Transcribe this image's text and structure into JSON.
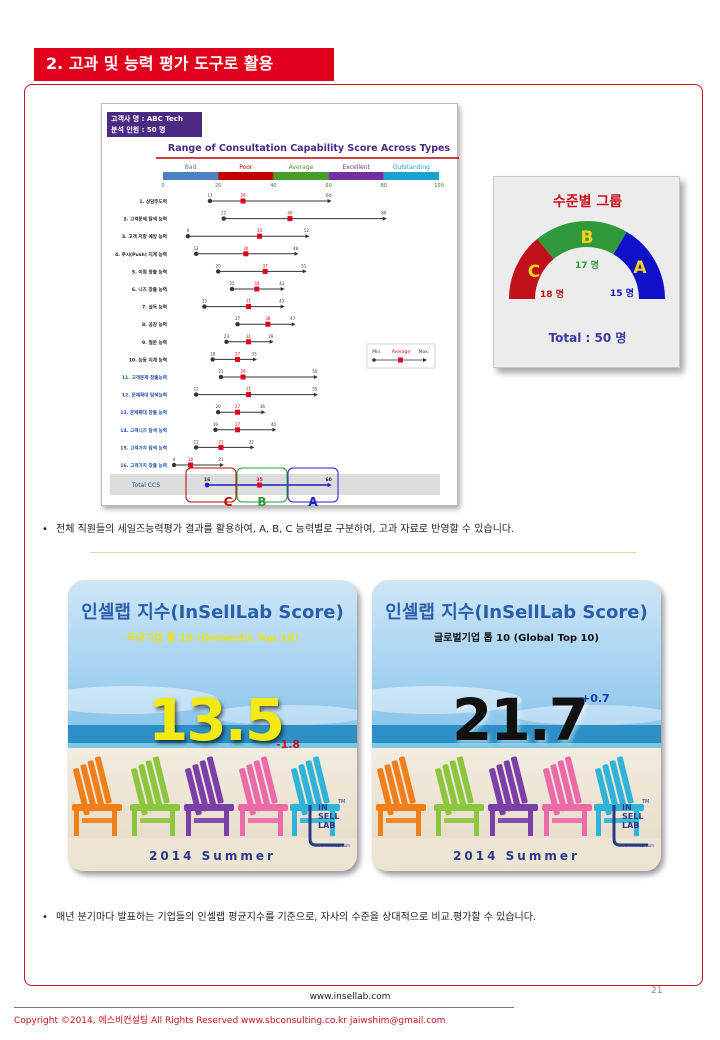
{
  "section_title": "2. 고과 및 능력 평가 도구로 활용",
  "info_box": {
    "client": "고객사 명 :   ABC Tech",
    "analyzed": "분석 인원 :   50 명"
  },
  "chart_data": {
    "type": "range",
    "title": "Range of Consultation Capability Score Across Types",
    "bands": [
      {
        "name": "Bad",
        "from": 0,
        "to": 20,
        "color": "#4f81bd"
      },
      {
        "name": "Poor",
        "from": 20,
        "to": 40,
        "color": "#c00000"
      },
      {
        "name": "Average",
        "from": 40,
        "to": 60,
        "color": "#4a9a2c"
      },
      {
        "name": "Excellent",
        "from": 60,
        "to": 80,
        "color": "#7030a0"
      },
      {
        "name": "Outstanding",
        "from": 80,
        "to": 100,
        "color": "#1ba3cf"
      }
    ],
    "ticks": [
      0,
      20,
      40,
      60,
      80,
      100
    ],
    "xlim": [
      0,
      100
    ],
    "rows": [
      {
        "label": "1. 상담주도력",
        "min": 17,
        "avg": 29,
        "max": 60,
        "color": "#222222"
      },
      {
        "label": "2. 고객문제 탐색 능력",
        "min": 22,
        "avg": 46,
        "max": 80,
        "color": "#222222"
      },
      {
        "label": "3. 고객 저항 예방 능력",
        "min": 9,
        "avg": 35,
        "max": 52,
        "color": "#222222"
      },
      {
        "label": "4. 푸시(Push) 지계 능력",
        "min": 12,
        "avg": 30,
        "max": 48,
        "color": "#222222"
      },
      {
        "label": "5. 이점 창출 능력",
        "min": 20,
        "avg": 37,
        "max": 51,
        "color": "#222222"
      },
      {
        "label": "6. 니즈 창출 능력",
        "min": 25,
        "avg": 34,
        "max": 43,
        "color": "#222222"
      },
      {
        "label": "7. 설득 능력",
        "min": 15,
        "avg": 31,
        "max": 43,
        "color": "#222222"
      },
      {
        "label": "8. 공감 능력",
        "min": 27,
        "avg": 38,
        "max": 47,
        "color": "#222222"
      },
      {
        "label": "9. 질문 능력",
        "min": 23,
        "avg": 31,
        "max": 39,
        "color": "#222222"
      },
      {
        "label": "10. 능동 지계 능력",
        "min": 18,
        "avg": 27,
        "max": 33,
        "color": "#222222"
      },
      {
        "label": "11. 고객문제 창출능력",
        "min": 21,
        "avg": 29,
        "max": 55,
        "color": "#1f4ea3"
      },
      {
        "label": "12. 문제확대 탐색능력",
        "min": 12,
        "avg": 31,
        "max": 55,
        "color": "#1f4ea3"
      },
      {
        "label": "13. 문제확대 창출 능력",
        "min": 20,
        "avg": 27,
        "max": 36,
        "color": "#1f4ea3"
      },
      {
        "label": "14. 고객니즈 탐색 능력",
        "min": 19,
        "avg": 27,
        "max": 40,
        "color": "#1f4ea3"
      },
      {
        "label": "15. 고객가치 탐색 능력",
        "min": 12,
        "avg": 21,
        "max": 32,
        "color": "#1f4ea3"
      },
      {
        "label": "16. 고객가치 창출 능력",
        "min": 4,
        "avg": 10,
        "max": 21,
        "color": "#1f4ea3"
      }
    ],
    "total": {
      "label": "Total CCS",
      "min": 16,
      "avg": 35,
      "max": 60
    },
    "legend": {
      "min": "Min.",
      "avg": "Average",
      "max": "Max."
    },
    "zones": [
      "C",
      "B",
      "A"
    ]
  },
  "group": {
    "title": "수준별 그룹",
    "segments": [
      {
        "letter": "C",
        "count": "18 명",
        "color": "#c0101a"
      },
      {
        "letter": "B",
        "count": "17 명",
        "color": "#2e9a3c"
      },
      {
        "letter": "A",
        "count": "15 명",
        "color": "#1010c8"
      }
    ],
    "total": "Total : 50 명"
  },
  "bullet1": "전체 직원들의 세일즈능력평가 결과를 활용하여, A, B, C 능력별로 구분하여, 고과 자료로 반영할 수 있습니다.",
  "score_cards": [
    {
      "title": "인셀랩 지수(InSellLab Score)",
      "subtitle": "국내기업 톱 10 (Domestic Top 10)",
      "value": "13.5",
      "delta": "-1.8",
      "season": "2014 Summer",
      "value_color": "#f2ea10",
      "delta_color": "#c8121f",
      "sub_color": "#e8e01a"
    },
    {
      "title": "인셀랩 지수(InSellLab Score)",
      "subtitle": "글로벌기업 톱 10 (Global Top 10)",
      "value": "21.7",
      "delta": "+0.7",
      "season": "2014 Summer",
      "value_color": "#111111",
      "delta_color": "#1a3ab0",
      "sub_color": "#111111"
    }
  ],
  "logo": {
    "l1": "IN",
    "l2": "SELL",
    "l3": "LAB",
    "tm": "TM",
    "site": "www.insellab.com"
  },
  "bullet2": "매년 분기마다 발표하는 기업들의 인셀랩 평균지수를 기준으로, 자사의 수준을 상대적으로 비교.평가할 수 있습니다.",
  "page_number": "21",
  "site": "www.insellab.com",
  "copyright": "Copyright ©2014, 에스비컨설팅 All Rights Reserved     www.sbconsulting.co.kr    jaiwshim@gmail.com"
}
